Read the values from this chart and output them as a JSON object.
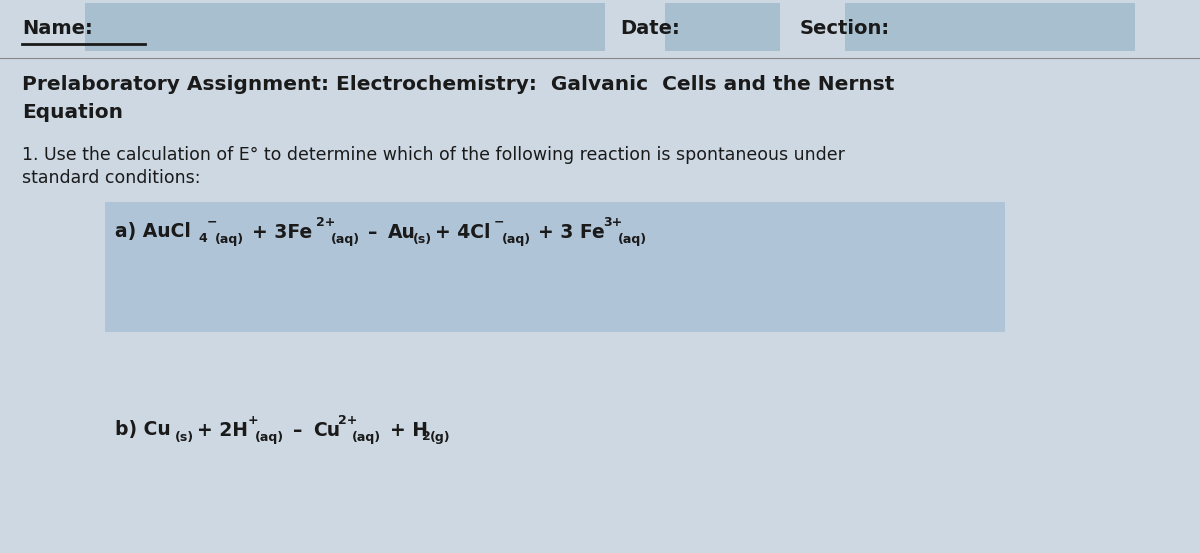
{
  "page_bg": "#cdd8e3",
  "header_bg": "#a8bfd0",
  "box_bg": "#b0c4d8",
  "text_color": "#1a1a1a",
  "name_label": "Name:",
  "date_label": "Date:",
  "section_label": "Section:",
  "title_line1": "Prelaboratory Assignment: Electrochemistry:  Galvanic  Cells and the Nernst",
  "title_line2": "Equation",
  "question_intro": "1. Use the calculation of E° to determine which of the following reaction is spontaneous under",
  "question_intro2": "standard conditions:",
  "figw": 12.0,
  "figh": 5.53,
  "dpi": 100
}
